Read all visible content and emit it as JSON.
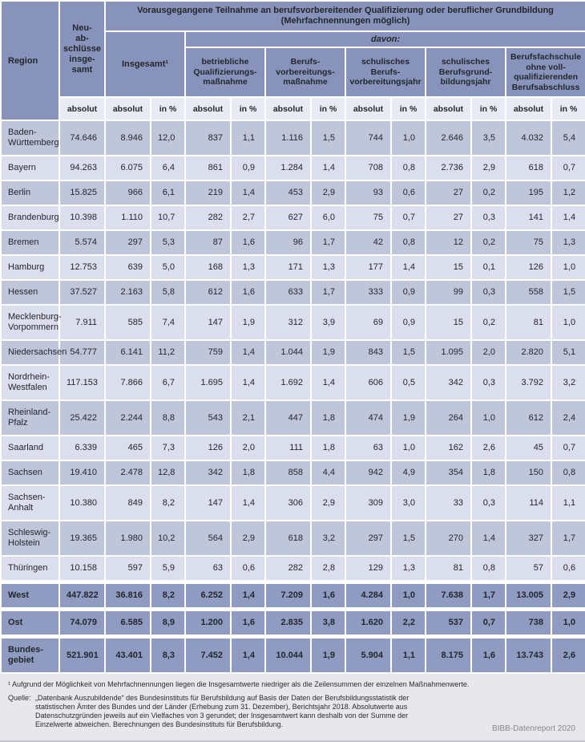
{
  "header": {
    "region_label": "Region",
    "neuabschluesse_label": "Neu-\nab-\nschlüsse\ninsge-\nsamt",
    "main_title": "Vorausgegangene Teilnahme an berufsvorbereitender Qualifizierung oder beruflicher Grundbildung\n(Mehrfachnennungen möglich)",
    "insgesamt_label": "Insgesamt¹",
    "davon_label": "davon:",
    "group_headers": [
      "betriebliche\nQualifizierungs-\nmaßnahme",
      "Berufs-\nvorbereitungs-\nmaßnahme",
      "schulisches\nBerufs-\nvorbereitungsjahr",
      "schulisches\nBerufsgrund-\nbildungsjahr",
      "Berufsfachschule\nohne voll-\nqualifizierenden\nBerufsabschluss"
    ],
    "units": [
      "absolut",
      "absolut",
      "in %",
      "absolut",
      "in %",
      "absolut",
      "in %",
      "absolut",
      "in %",
      "absolut",
      "in %",
      "absolut",
      "in %"
    ]
  },
  "rows": [
    {
      "region": "Baden-\nWürttemberg",
      "type": "land",
      "values": [
        "74.646",
        "8.946",
        "12,0",
        "837",
        "1,1",
        "1.116",
        "1,5",
        "744",
        "1,0",
        "2.646",
        "3,5",
        "4.032",
        "5,4"
      ]
    },
    {
      "region": "Bayern",
      "type": "land",
      "values": [
        "94.263",
        "6.075",
        "6,4",
        "861",
        "0,9",
        "1.284",
        "1,4",
        "708",
        "0,8",
        "2.736",
        "2,9",
        "618",
        "0,7"
      ]
    },
    {
      "region": "Berlin",
      "type": "land",
      "values": [
        "15.825",
        "966",
        "6,1",
        "219",
        "1,4",
        "453",
        "2,9",
        "93",
        "0,6",
        "27",
        "0,2",
        "195",
        "1,2"
      ]
    },
    {
      "region": "Brandenburg",
      "type": "land",
      "values": [
        "10.398",
        "1.110",
        "10,7",
        "282",
        "2,7",
        "627",
        "6,0",
        "75",
        "0,7",
        "27",
        "0,3",
        "141",
        "1,4"
      ]
    },
    {
      "region": "Bremen",
      "type": "land",
      "values": [
        "5.574",
        "297",
        "5,3",
        "87",
        "1,6",
        "96",
        "1,7",
        "42",
        "0,8",
        "12",
        "0,2",
        "75",
        "1,3"
      ]
    },
    {
      "region": "Hamburg",
      "type": "land",
      "values": [
        "12.753",
        "639",
        "5,0",
        "168",
        "1,3",
        "171",
        "1,3",
        "177",
        "1,4",
        "15",
        "0,1",
        "126",
        "1,0"
      ]
    },
    {
      "region": "Hessen",
      "type": "land",
      "values": [
        "37.527",
        "2.163",
        "5,8",
        "612",
        "1,6",
        "633",
        "1,7",
        "333",
        "0,9",
        "99",
        "0,3",
        "558",
        "1,5"
      ]
    },
    {
      "region": "Mecklenburg-\nVorpommern",
      "type": "land",
      "values": [
        "7.911",
        "585",
        "7,4",
        "147",
        "1,9",
        "312",
        "3,9",
        "69",
        "0,9",
        "15",
        "0,2",
        "81",
        "1,0"
      ]
    },
    {
      "region": "Niedersachsen",
      "type": "land",
      "values": [
        "54.777",
        "6.141",
        "11,2",
        "759",
        "1,4",
        "1.044",
        "1,9",
        "843",
        "1,5",
        "1.095",
        "2,0",
        "2.820",
        "5,1"
      ]
    },
    {
      "region": "Nordrhein-\nWestfalen",
      "type": "land",
      "values": [
        "117.153",
        "7.866",
        "6,7",
        "1.695",
        "1,4",
        "1.692",
        "1,4",
        "606",
        "0,5",
        "342",
        "0,3",
        "3.792",
        "3,2"
      ]
    },
    {
      "region": "Rheinland-\nPfalz",
      "type": "land",
      "values": [
        "25.422",
        "2.244",
        "8,8",
        "543",
        "2,1",
        "447",
        "1,8",
        "474",
        "1,9",
        "264",
        "1,0",
        "612",
        "2,4"
      ]
    },
    {
      "region": "Saarland",
      "type": "land",
      "values": [
        "6.339",
        "465",
        "7,3",
        "126",
        "2,0",
        "111",
        "1,8",
        "63",
        "1,0",
        "162",
        "2,6",
        "45",
        "0,7"
      ]
    },
    {
      "region": "Sachsen",
      "type": "land",
      "values": [
        "19.410",
        "2.478",
        "12,8",
        "342",
        "1,8",
        "858",
        "4,4",
        "942",
        "4,9",
        "354",
        "1,8",
        "150",
        "0,8"
      ]
    },
    {
      "region": "Sachsen-\nAnhalt",
      "type": "land",
      "values": [
        "10.380",
        "849",
        "8,2",
        "147",
        "1,4",
        "306",
        "2,9",
        "309",
        "3,0",
        "33",
        "0,3",
        "114",
        "1,1"
      ]
    },
    {
      "region": "Schleswig-\nHolstein",
      "type": "land",
      "values": [
        "19.365",
        "1.980",
        "10,2",
        "564",
        "2,9",
        "618",
        "3,2",
        "297",
        "1,5",
        "270",
        "1,4",
        "327",
        "1,7"
      ]
    },
    {
      "region": "Thüringen",
      "type": "land",
      "values": [
        "10.158",
        "597",
        "5,9",
        "63",
        "0,6",
        "282",
        "2,8",
        "129",
        "1,3",
        "81",
        "0,8",
        "57",
        "0,6"
      ]
    },
    {
      "region": "West",
      "type": "summary",
      "values": [
        "447.822",
        "36.816",
        "8,2",
        "6.252",
        "1,4",
        "7.209",
        "1,6",
        "4.284",
        "1,0",
        "7.638",
        "1,7",
        "13.005",
        "2,9"
      ]
    },
    {
      "region": "Ost",
      "type": "summary",
      "values": [
        "74.079",
        "6.585",
        "8,9",
        "1.200",
        "1,6",
        "2.835",
        "3,8",
        "1.620",
        "2,2",
        "537",
        "0,7",
        "738",
        "1,0"
      ]
    },
    {
      "region": "Bundes-\ngebiet",
      "type": "summary",
      "values": [
        "521.901",
        "43.401",
        "8,3",
        "7.452",
        "1,4",
        "10.044",
        "1,9",
        "5.904",
        "1,1",
        "8.175",
        "1,6",
        "13.743",
        "2,6"
      ]
    }
  ],
  "footer": {
    "footnote": "¹ Aufgrund der Möglichkeit von Mehrfachnennungen liegen die Insgesamtwerte niedriger als die Zeilensummen der einzelnen Maßnahmenwerte.",
    "source_label": "Quelle:",
    "source_text": "„Datenbank Auszubildende“ des Bundesinstituts für Berufsbildung auf Basis der Daten der Berufsbildungsstatistik der\nstatistischen Ämter des Bundes und der Länder (Erhebung zum 31. Dezember), Berichtsjahr 2018. Absolutwerte aus\nDatenschutzgründen jeweils auf ein Vielfaches von 3 gerundet; der Insgesamtwert kann deshalb von der Summe der\nEinzelwerte abweichen. Berechnungen des Bundesinstituts für Berufsbildung.",
    "credit": "BIBB-Datenreport 2020"
  },
  "colors": {
    "header_bg": "#8793ba",
    "row_dark": "#bfc6da",
    "row_light": "#dbdeec",
    "unit_row_bg": "#e9ebf4",
    "summary_bg": "#8f9bc0",
    "footer_bg": "#e8e8ec",
    "text": "#23272e",
    "credit_text": "#85868c"
  }
}
